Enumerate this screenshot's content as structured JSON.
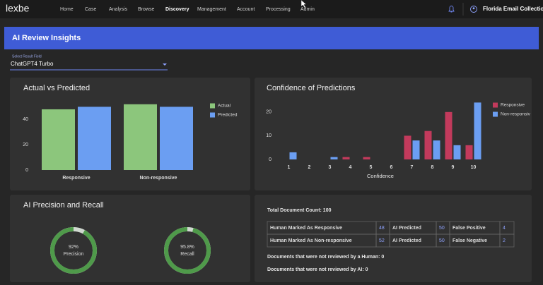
{
  "nav": {
    "logo": "lexbe",
    "items": [
      "Home",
      "Case",
      "Analysis",
      "Browse",
      "Discovery",
      "Management",
      "Account",
      "Processing",
      "Admin"
    ],
    "collection": "Florida Email Collection"
  },
  "banner": {
    "title": "AI Review Insights"
  },
  "select": {
    "label": "Select Result Field",
    "value": "ChatGPT4 Turbo"
  },
  "charts": [
    {
      "type": "bar",
      "title": "Actual vs Predicted",
      "categories": [
        "Responsive",
        "Non-responsive"
      ],
      "series": [
        {
          "name": "Actual",
          "color": "#8cc67c",
          "values": [
            48,
            52
          ]
        },
        {
          "name": "Predicted",
          "color": "#6b9ef2",
          "values": [
            50,
            50
          ]
        }
      ],
      "ylim": [
        0,
        53
      ],
      "yticks": [
        0,
        20,
        40
      ]
    },
    {
      "type": "bar",
      "title": "Confidence of Predictions",
      "xlabel": "Confidence",
      "categories": [
        "1",
        "2",
        "3",
        "4",
        "5",
        "6",
        "7",
        "8",
        "9",
        "10"
      ],
      "series": [
        {
          "name": "Responsive",
          "color": "#c23a5c",
          "values": [
            0,
            0,
            0,
            1,
            1,
            0,
            10,
            12,
            20,
            6
          ]
        },
        {
          "name": "Non-responsive",
          "color": "#6b9ef2",
          "values": [
            3,
            0,
            1,
            0,
            0,
            0,
            8,
            8,
            6,
            24
          ]
        }
      ],
      "ylim": [
        0,
        25
      ],
      "yticks": [
        0,
        10,
        20
      ]
    }
  ],
  "donuts": {
    "type": "donut",
    "title": "AI Precision and Recall",
    "categories": [
      "Precision",
      "Recall"
    ],
    "values": [
      92,
      95.8
    ],
    "value_labels": [
      "92%",
      "95.8%"
    ],
    "color": "#4f9a4a",
    "track_color": "#d0d8d0"
  },
  "summary": {
    "total": "Total Document Count: 100",
    "table": {
      "rows": [
        [
          "Human Marked As Responsive",
          48,
          "AI Predicted",
          50,
          "False Positive",
          4
        ],
        [
          "Human Marked As Non-responsive",
          52,
          "AI Predicted",
          50,
          "False Negative",
          2
        ]
      ]
    },
    "notes": [
      "Documents that were not reviewed by a Human: 0",
      "Documents that were not reviewed by AI: 0"
    ]
  }
}
